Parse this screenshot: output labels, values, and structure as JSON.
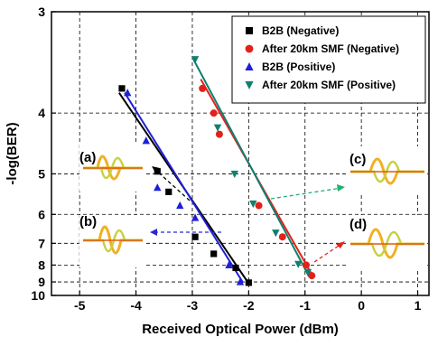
{
  "chart_data": {
    "type": "scatter",
    "xlabel": "Received Optical Power (dBm)",
    "ylabel": "-log(BER)",
    "xlim": [
      -5.5,
      1.2
    ],
    "ylim": [
      3,
      10
    ],
    "y_scale": "reciprocal",
    "x_ticks": [
      -5,
      -4,
      -3,
      -2,
      -1,
      0,
      1
    ],
    "y_ticks": [
      3,
      4,
      5,
      6,
      7,
      8,
      9,
      10
    ],
    "grid": true,
    "legend_position": "top-right",
    "series": [
      {
        "name": "B2B (Negative)",
        "marker": "square",
        "color": "#000000",
        "points": [
          [
            -4.25,
            3.7
          ],
          [
            -3.62,
            4.95
          ],
          [
            -3.42,
            5.4
          ],
          [
            -2.95,
            6.75
          ],
          [
            -2.62,
            7.45
          ],
          [
            -2.23,
            8.15
          ],
          [
            -2.0,
            9.05
          ]
        ],
        "fit": [
          [
            -4.3,
            3.75
          ],
          [
            -2.0,
            9.1
          ]
        ]
      },
      {
        "name": "After 20km SMF (Negative)",
        "marker": "circle",
        "color": "#e32119",
        "points": [
          [
            -2.82,
            3.7
          ],
          [
            -2.62,
            4.0
          ],
          [
            -2.52,
            4.3
          ],
          [
            -1.82,
            5.75
          ],
          [
            -1.4,
            6.75
          ],
          [
            -0.98,
            8.0
          ],
          [
            -0.88,
            8.6
          ]
        ],
        "fit": [
          [
            -2.85,
            3.6
          ],
          [
            -0.85,
            8.7
          ]
        ]
      },
      {
        "name": "B2B (Positive)",
        "marker": "triangle-up",
        "color": "#1f1fd9",
        "points": [
          [
            -4.15,
            3.75
          ],
          [
            -3.82,
            4.4
          ],
          [
            -3.62,
            5.3
          ],
          [
            -3.22,
            5.75
          ],
          [
            -2.95,
            6.1
          ],
          [
            -2.35,
            8.0
          ],
          [
            -2.15,
            9.0
          ]
        ],
        "fit": [
          [
            -4.2,
            3.75
          ],
          [
            -2.1,
            9.05
          ]
        ]
      },
      {
        "name": "After 20km SMF (Positive)",
        "marker": "triangle-down",
        "color": "#0f8070",
        "points": [
          [
            -2.95,
            3.4
          ],
          [
            -2.55,
            4.2
          ],
          [
            -2.25,
            5.0
          ],
          [
            -1.92,
            5.7
          ],
          [
            -1.52,
            6.6
          ],
          [
            -1.12,
            7.95
          ],
          [
            -0.95,
            8.4
          ]
        ],
        "fit": [
          [
            -2.98,
            3.4
          ],
          [
            -0.92,
            8.7
          ]
        ]
      }
    ],
    "annotations": [
      "(a)",
      "(b)",
      "(c)",
      "(d)"
    ]
  }
}
